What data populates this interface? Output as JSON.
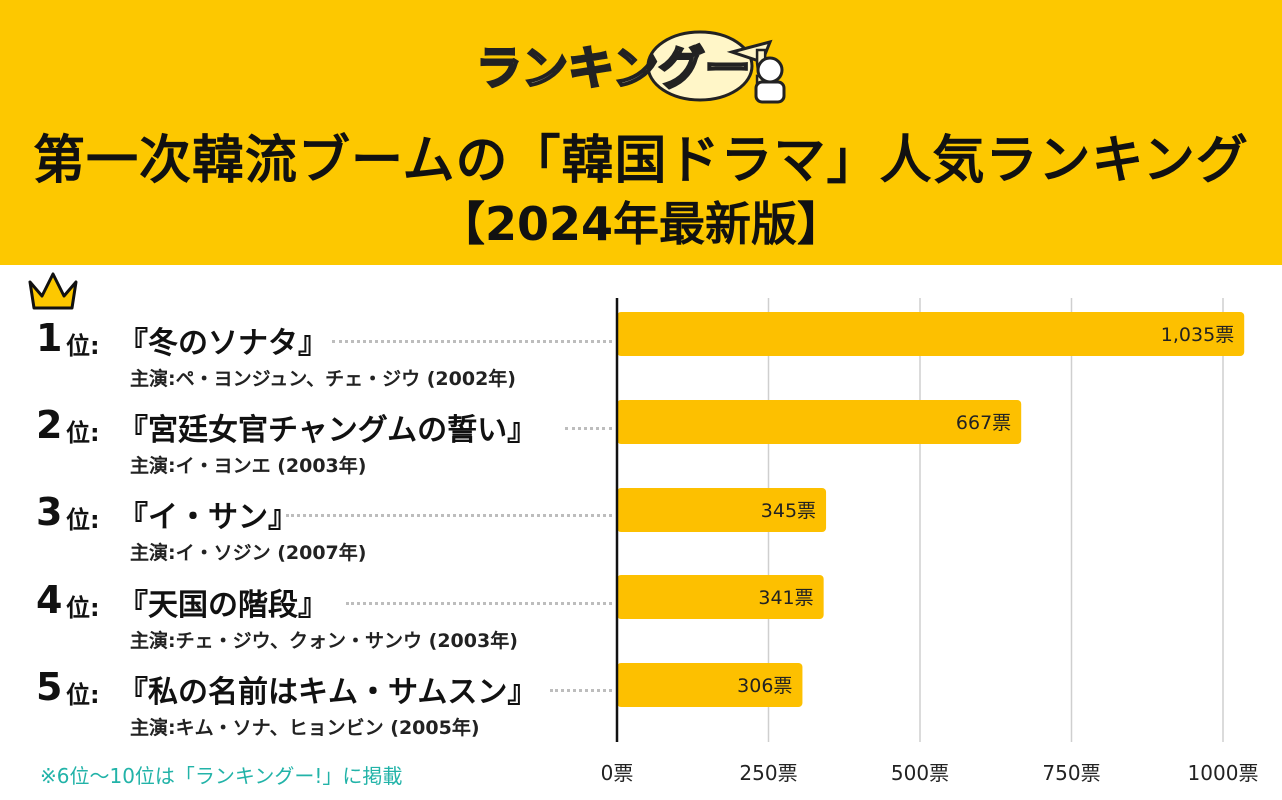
{
  "header": {
    "logo_text": "ランキングー!",
    "title": "第一次韓流ブームの「韓国ドラマ」人気ランキング",
    "subtitle": "【2024年最新版】",
    "bg_color": "#fdc800"
  },
  "rankings": [
    {
      "num": "1",
      "suffix": "位",
      "colon": ":",
      "title": "『冬のソナタ』",
      "cast": "主演:ペ・ヨンジュン、チェ・ジウ (2002年)"
    },
    {
      "num": "2",
      "suffix": "位",
      "colon": ":",
      "title": "『宮廷女官チャングムの誓い』",
      "cast": "主演:イ・ヨンエ (2003年)"
    },
    {
      "num": "3",
      "suffix": "位",
      "colon": ":",
      "title": "『イ・サン』",
      "cast": "主演:イ・ソジン (2007年)"
    },
    {
      "num": "4",
      "suffix": "位",
      "colon": ":",
      "title": "『天国の階段』",
      "cast": "主演:チェ・ジウ、クォン・サンウ (2003年)"
    },
    {
      "num": "5",
      "suffix": "位",
      "colon": ":",
      "title": "『私の名前はキム・サムスン』",
      "cast": "主演:キム・ソナ、ヒョンビン (2005年)"
    }
  ],
  "note": "※6位〜10位は「ランキングー!」に掲載",
  "chart_data": {
    "type": "bar",
    "orientation": "horizontal",
    "categories": [
      "冬のソナタ",
      "宮廷女官チャングムの誓い",
      "イ・サン",
      "天国の階段",
      "私の名前はキム・サムスン"
    ],
    "values": [
      1035,
      667,
      345,
      341,
      306
    ],
    "value_labels": [
      "1,035票",
      "667票",
      "345票",
      "341票",
      "306票"
    ],
    "xlim": [
      0,
      1000
    ],
    "xticks": [
      0,
      250,
      500,
      750,
      1000
    ],
    "xtick_labels": [
      "0票",
      "250票",
      "500票",
      "750票",
      "1000票"
    ],
    "bar_color": "#fdc000",
    "grid": true
  }
}
